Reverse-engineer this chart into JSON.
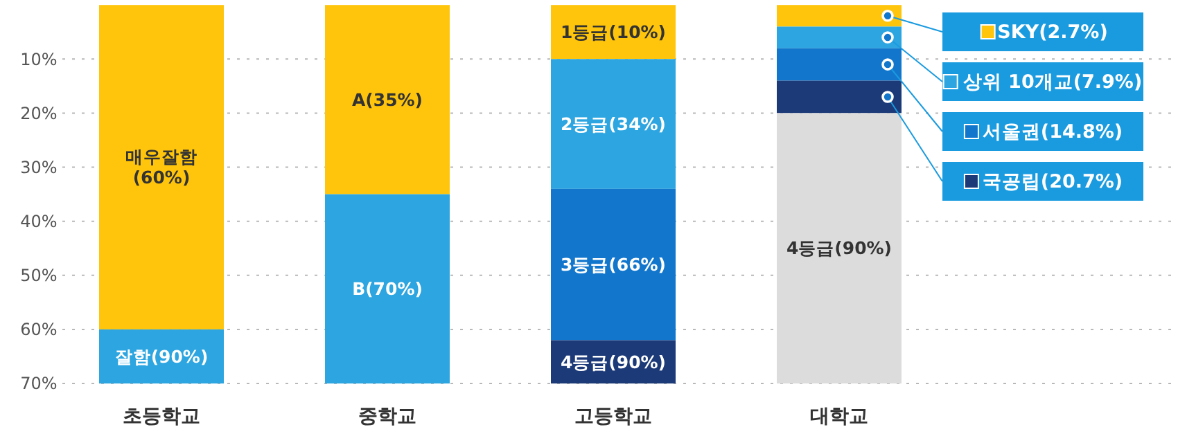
{
  "chart_data": {
    "type": "bar",
    "stacked": true,
    "categories": [
      "초등학교",
      "중학교",
      "고등학교",
      "대학교"
    ],
    "series": [
      {
        "name": "매우잘함(60%)",
        "color": "#ffc50c",
        "values": [
          60,
          null,
          null,
          null
        ]
      },
      {
        "name": "잘함(90%)",
        "color": "#2ca5e0",
        "values": [
          10,
          null,
          null,
          null
        ]
      },
      {
        "name": "A(35%)",
        "color": "#ffc50c",
        "values": [
          null,
          35,
          null,
          null
        ]
      },
      {
        "name": "B(70%)",
        "color": "#2ca5e0",
        "values": [
          null,
          35,
          null,
          null
        ]
      },
      {
        "name": "1등급(10%)",
        "color": "#ffc50c",
        "values": [
          null,
          null,
          10,
          null
        ]
      },
      {
        "name": "2등급(34%)",
        "color": "#2ca5e0",
        "values": [
          null,
          null,
          24,
          null
        ]
      },
      {
        "name": "3등급(66%)",
        "color": "#1277cc",
        "values": [
          null,
          null,
          28,
          null
        ]
      },
      {
        "name": "4등급(90%)",
        "color": "#1c3a78",
        "values": [
          null,
          null,
          8,
          null
        ]
      },
      {
        "name": "SKY(2.7%)",
        "color": "#ffc50c",
        "values": [
          null,
          null,
          null,
          4
        ]
      },
      {
        "name": "상위 10개교(7.9%)",
        "color": "#2ca5e0",
        "values": [
          null,
          null,
          null,
          4
        ]
      },
      {
        "name": "서울권(14.8%)",
        "color": "#1277cc",
        "values": [
          null,
          null,
          null,
          6
        ]
      },
      {
        "name": "국공립(20.7%)",
        "color": "#1c3a78",
        "values": [
          null,
          null,
          null,
          6
        ]
      },
      {
        "name": "4등급(90%)",
        "color": "#dcdcdc",
        "values": [
          null,
          null,
          null,
          50
        ]
      }
    ],
    "ylim": [
      70,
      0
    ],
    "yticks": [
      {
        "value": 10,
        "label": "10%"
      },
      {
        "value": 20,
        "label": "20%"
      },
      {
        "value": 30,
        "label": "30%"
      },
      {
        "value": 40,
        "label": "40%"
      },
      {
        "value": 50,
        "label": "50%"
      },
      {
        "value": 60,
        "label": "60%"
      },
      {
        "value": 70,
        "label": "70%"
      }
    ],
    "grid": "y",
    "legend": "right"
  }
}
